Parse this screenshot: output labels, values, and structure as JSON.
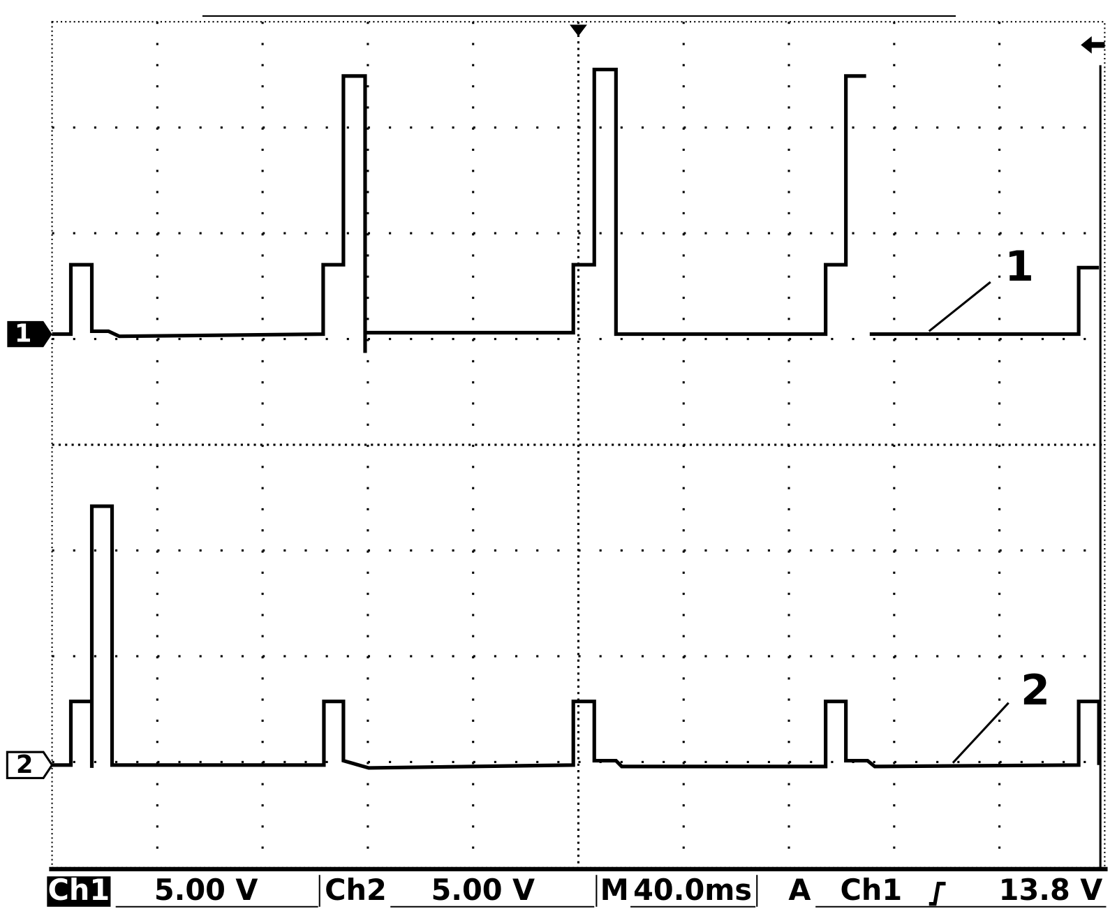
{
  "display": {
    "annotations": [
      "1",
      "2"
    ],
    "channel_markers": [
      "1",
      "2"
    ]
  },
  "status_bar": {
    "ch1_label": "Ch1",
    "ch1_scale": "5.00 V",
    "ch2_label": "Ch2",
    "ch2_scale": "5.00 V",
    "timebase_prefix": "M",
    "timebase": "40.0ms",
    "trigger_mode": "A",
    "trigger_source": "Ch1",
    "trigger_level": "13.8 V"
  }
}
